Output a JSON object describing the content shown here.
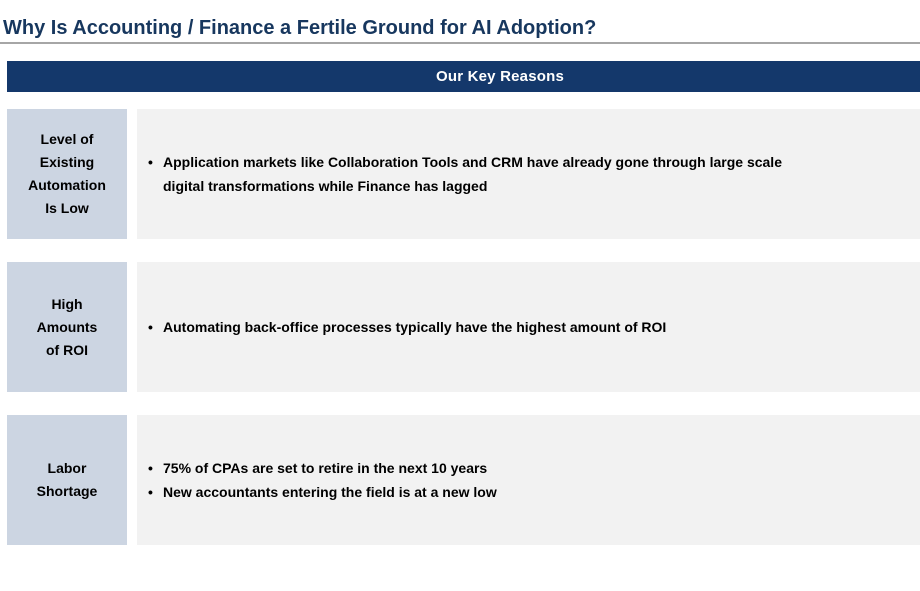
{
  "slide": {
    "title": "Why Is Accounting / Finance a Fertile Ground for AI Adoption?",
    "banner": {
      "label": "Our Key Reasons"
    },
    "bullet_char": "•",
    "rows": [
      {
        "label": "Level of\nExisting\nAutomation\nIs Low",
        "bullets": [
          "Application markets like Collaboration Tools and CRM have already gone through large scale\ndigital transformations while Finance has lagged"
        ]
      },
      {
        "label": "High\nAmounts\nof ROI",
        "bullets": [
          "Automating back-office processes typically have the highest amount of ROI"
        ]
      },
      {
        "label": "Labor\nShortage",
        "bullets": [
          "75% of CPAs are set to retire in the next 10 years",
          "New accountants entering the field is at a new low"
        ]
      }
    ],
    "colors": {
      "title_navy": "#17375E",
      "banner_navy": "#14386B",
      "label_box_blue": "#CCD5E2",
      "content_box_gray": "#F2F2F2",
      "rule_gray": "#A6A6A6",
      "body_text": "#000000"
    }
  }
}
